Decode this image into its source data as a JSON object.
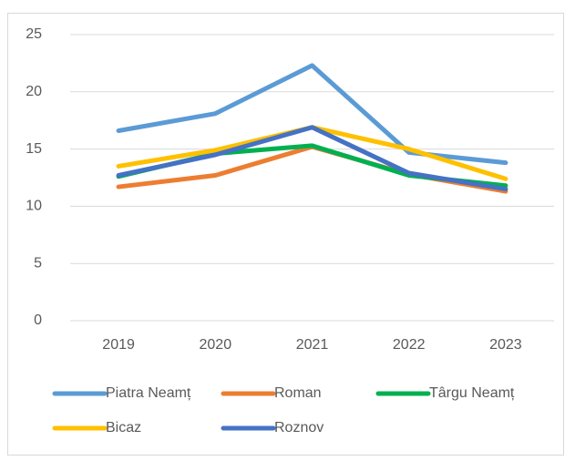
{
  "chart_data": {
    "type": "line",
    "categories": [
      "2019",
      "2020",
      "2021",
      "2022",
      "2023"
    ],
    "series": [
      {
        "name": "Piatra Neamț",
        "color": "#5B9BD5",
        "values": [
          16.6,
          18.1,
          22.3,
          14.7,
          13.8
        ]
      },
      {
        "name": "Roman",
        "color": "#ED7D31",
        "values": [
          11.7,
          12.7,
          15.2,
          12.8,
          11.3
        ]
      },
      {
        "name": "Târgu Neamț",
        "color": "#00B050",
        "values": [
          12.6,
          14.6,
          15.3,
          12.7,
          11.8
        ]
      },
      {
        "name": "Bicaz",
        "color": "#FFC000",
        "values": [
          13.5,
          14.9,
          16.9,
          15.0,
          12.4
        ]
      },
      {
        "name": "Roznov",
        "color": "#4472C4",
        "values": [
          12.7,
          14.5,
          16.9,
          12.9,
          11.5
        ]
      }
    ],
    "ylim": [
      0,
      25
    ],
    "yticks": [
      0,
      5,
      10,
      15,
      20,
      25
    ],
    "grid": true,
    "legend": "bottom"
  }
}
